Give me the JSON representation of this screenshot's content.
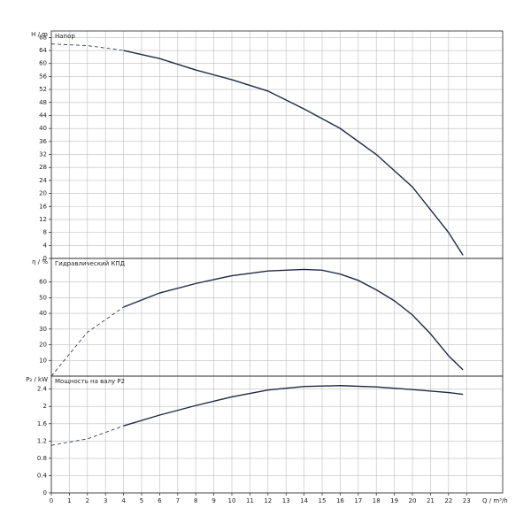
{
  "chart_data": [
    {
      "type": "line",
      "y_label": "H / m",
      "label": "Напор",
      "xlim": [
        0,
        25
      ],
      "xticks": [
        0,
        1,
        2,
        3,
        4,
        5,
        6,
        7,
        8,
        9,
        10,
        11,
        12,
        13,
        14,
        15,
        16,
        17,
        18,
        19,
        20,
        21,
        22,
        23
      ],
      "ylim": [
        0,
        70
      ],
      "yticks": [
        0,
        4,
        8,
        12,
        16,
        20,
        24,
        28,
        32,
        36,
        40,
        44,
        48,
        52,
        56,
        60,
        64,
        68
      ],
      "grid": true,
      "color": "#1f2a44",
      "dashed_below": 4,
      "x": [
        0,
        2,
        4,
        6,
        8,
        10,
        12,
        14,
        16,
        18,
        20,
        22,
        22.8
      ],
      "values": [
        66,
        65.5,
        64,
        61.5,
        58,
        55,
        51.5,
        46,
        40,
        32,
        22,
        8,
        1
      ]
    },
    {
      "type": "line",
      "y_label": "η / %",
      "label": "Гидравлический КПД",
      "xlim": [
        0,
        25
      ],
      "xticks": [
        0,
        1,
        2,
        3,
        4,
        5,
        6,
        7,
        8,
        9,
        10,
        11,
        12,
        13,
        14,
        15,
        16,
        17,
        18,
        19,
        20,
        21,
        22,
        23
      ],
      "ylim": [
        0,
        75
      ],
      "yticks": [
        10,
        20,
        30,
        40,
        50,
        60
      ],
      "grid": true,
      "color": "#1f2a44",
      "dashed_below": 4,
      "x": [
        0,
        2,
        4,
        6,
        8,
        10,
        12,
        14,
        15,
        16,
        17,
        18,
        19,
        20,
        21,
        22,
        22.8
      ],
      "values": [
        0,
        28,
        44,
        53,
        59,
        64,
        67,
        68,
        67.5,
        65,
        61,
        55,
        48,
        39,
        27,
        13,
        4
      ]
    },
    {
      "type": "line",
      "y_label": "P₂ / kW",
      "label": "Мощность на валу P2",
      "xlabel": "Q / m³/h",
      "xlim": [
        0,
        25
      ],
      "xticks": [
        0,
        1,
        2,
        3,
        4,
        5,
        6,
        7,
        8,
        9,
        10,
        11,
        12,
        13,
        14,
        15,
        16,
        17,
        18,
        19,
        20,
        21,
        22,
        23
      ],
      "ylim": [
        0,
        2.7
      ],
      "yticks": [
        0,
        0.4,
        0.8,
        1.2,
        1.6,
        2,
        2.4
      ],
      "grid": true,
      "color": "#1f2a44",
      "dashed_below": 4,
      "x": [
        0,
        2,
        4,
        6,
        8,
        10,
        12,
        14,
        16,
        18,
        20,
        22,
        22.8
      ],
      "values": [
        1.1,
        1.25,
        1.55,
        1.8,
        2.02,
        2.22,
        2.38,
        2.46,
        2.48,
        2.45,
        2.39,
        2.32,
        2.28
      ]
    }
  ]
}
